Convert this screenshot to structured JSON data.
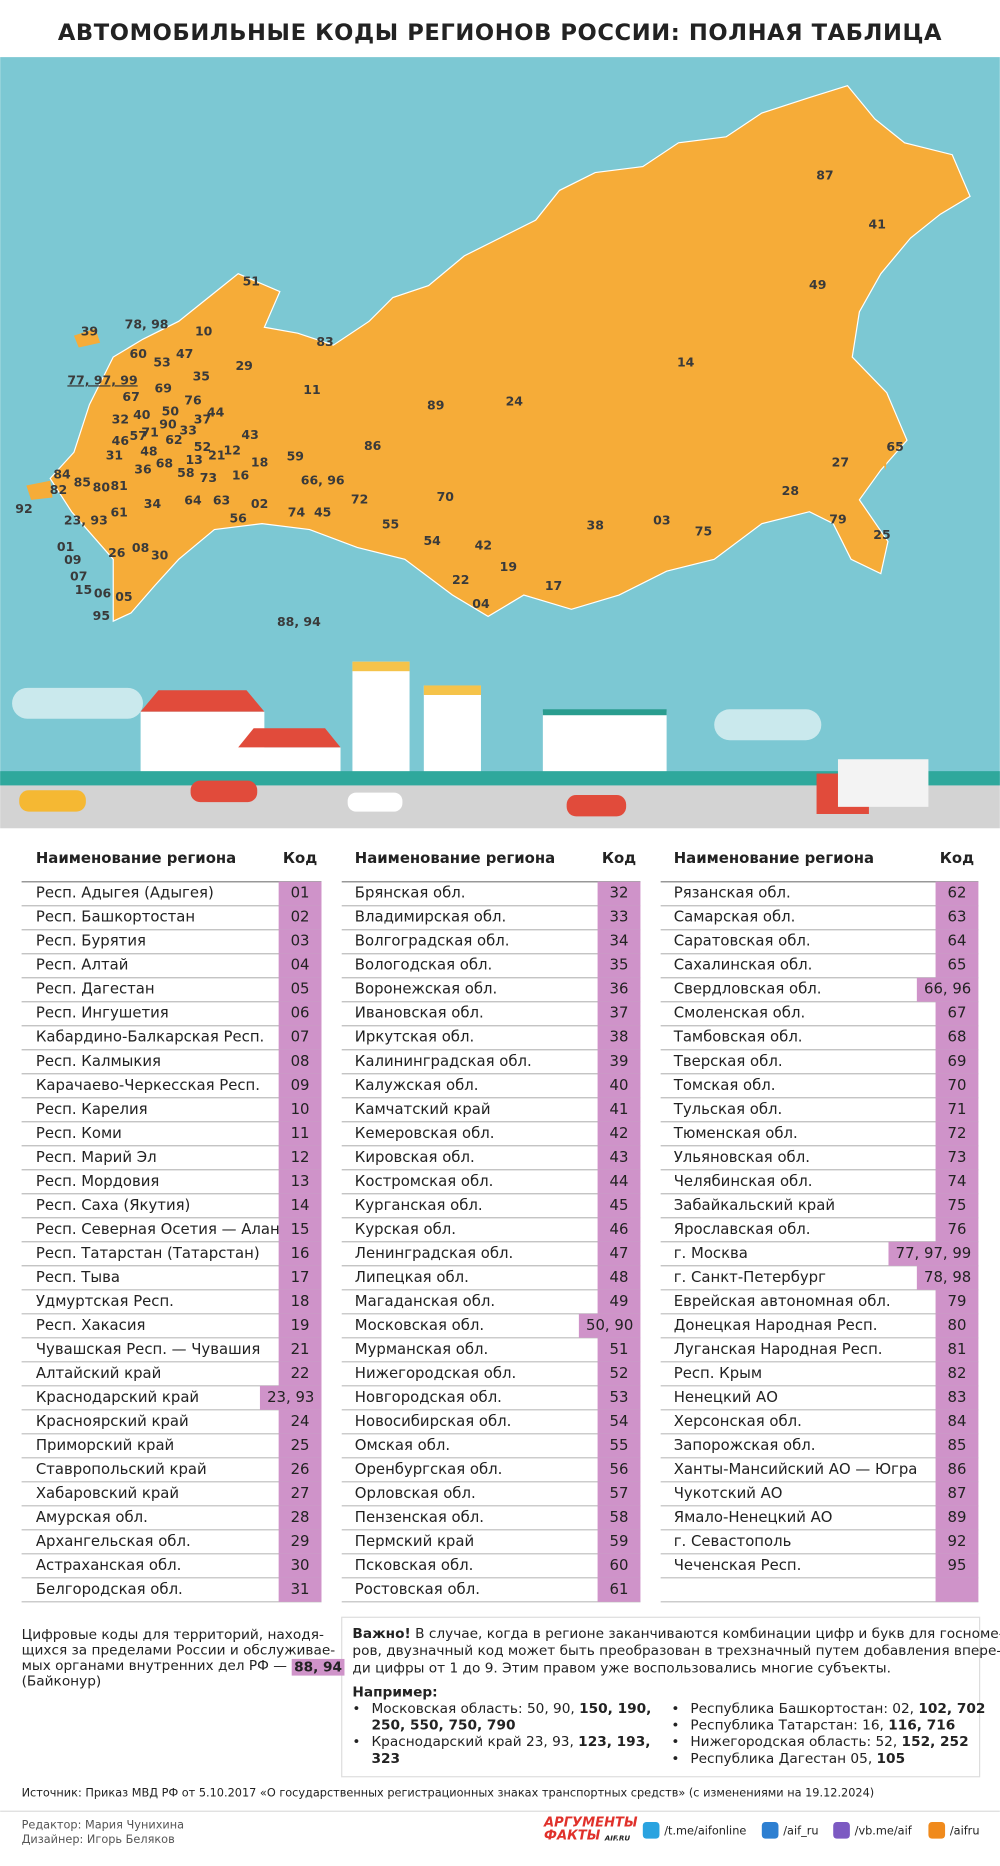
{
  "header": {
    "title": "АВТОМОБИЛЬНЫЕ КОДЫ РЕГИОНОВ РОССИИ: ПОЛНАЯ ТАБЛИЦА"
  },
  "map": {
    "labels": [
      "87",
      "41",
      "49",
      "14",
      "65",
      "27",
      "28",
      "79",
      "25",
      "03",
      "75",
      "38",
      "17",
      "04",
      "22",
      "19",
      "42",
      "54",
      "55",
      "70",
      "72",
      "86",
      "89",
      "24",
      "11",
      "83",
      "51",
      "10",
      "29",
      "39",
      "78, 98",
      "60",
      "53",
      "47",
      "35",
      "69",
      "77, 97, 99",
      "67",
      "76",
      "40",
      "50",
      "44",
      "37",
      "32",
      "90",
      "33",
      "71",
      "62",
      "46",
      "57",
      "43",
      "52",
      "12",
      "21",
      "48",
      "13",
      "31",
      "68",
      "36",
      "58",
      "59",
      "18",
      "73",
      "16",
      "84",
      "85",
      "80",
      "81",
      "82",
      "64",
      "63",
      "34",
      "66, 96",
      "02",
      "74",
      "45",
      "56",
      "61",
      "92",
      "23, 93",
      "01",
      "09",
      "26",
      "08",
      "30",
      "07",
      "15",
      "06",
      "05",
      "95",
      "88, 94"
    ]
  },
  "table": {
    "headers": [
      "Наименование региона",
      "Код"
    ],
    "columns": [
      [
        [
          "Респ. Адыгея (Адыгея)",
          "01"
        ],
        [
          "Респ. Башкортостан",
          "02"
        ],
        [
          "Респ. Бурятия",
          "03"
        ],
        [
          "Респ. Алтай",
          "04"
        ],
        [
          "Респ. Дагестан",
          "05"
        ],
        [
          "Респ. Ингушетия",
          "06"
        ],
        [
          "Кабардино-Балкарская Респ.",
          "07"
        ],
        [
          "Респ. Калмыкия",
          "08"
        ],
        [
          "Карачаево-Черкесская Респ.",
          "09"
        ],
        [
          "Респ. Карелия",
          "10"
        ],
        [
          "Респ. Коми",
          "11"
        ],
        [
          "Респ. Марий Эл",
          "12"
        ],
        [
          "Респ. Мордовия",
          "13"
        ],
        [
          "Респ. Саха (Якутия)",
          "14"
        ],
        [
          "Респ. Северная Осетия — Алания",
          "15"
        ],
        [
          "Респ. Татарстан (Татарстан)",
          "16"
        ],
        [
          "Респ. Тыва",
          "17"
        ],
        [
          "Удмуртская Респ.",
          "18"
        ],
        [
          "Респ. Хакасия",
          "19"
        ],
        [
          "Чувашская Респ. — Чувашия",
          "21"
        ],
        [
          "Алтайский край",
          "22"
        ],
        [
          "Краснодарский край",
          "23, 93"
        ],
        [
          "Красноярский край",
          "24"
        ],
        [
          "Приморский край",
          "25"
        ],
        [
          "Ставропольский край",
          "26"
        ],
        [
          "Хабаровский край",
          "27"
        ],
        [
          "Амурская обл.",
          "28"
        ],
        [
          "Архангельская обл.",
          "29"
        ],
        [
          "Астраханская обл.",
          "30"
        ],
        [
          "Белгородская обл.",
          "31"
        ]
      ],
      [
        [
          "Брянская обл.",
          "32"
        ],
        [
          "Владимирская обл.",
          "33"
        ],
        [
          "Волгоградская обл.",
          "34"
        ],
        [
          "Вологодская обл.",
          "35"
        ],
        [
          "Воронежская обл.",
          "36"
        ],
        [
          "Ивановская обл.",
          "37"
        ],
        [
          "Иркутская обл.",
          "38"
        ],
        [
          "Калининградская обл.",
          "39"
        ],
        [
          "Калужская обл.",
          "40"
        ],
        [
          "Камчатский край",
          "41"
        ],
        [
          "Кемеровская обл.",
          "42"
        ],
        [
          "Кировская обл.",
          "43"
        ],
        [
          "Костромская обл.",
          "44"
        ],
        [
          "Курганская обл.",
          "45"
        ],
        [
          "Курская обл.",
          "46"
        ],
        [
          "Ленинградская обл.",
          "47"
        ],
        [
          "Липецкая обл.",
          "48"
        ],
        [
          "Магаданская обл.",
          "49"
        ],
        [
          "Московская обл.",
          "50, 90"
        ],
        [
          "Мурманская обл.",
          "51"
        ],
        [
          "Нижегородская обл.",
          "52"
        ],
        [
          "Новгородская обл.",
          "53"
        ],
        [
          "Новосибирская обл.",
          "54"
        ],
        [
          "Омская обл.",
          "55"
        ],
        [
          "Оренбургская обл.",
          "56"
        ],
        [
          "Орловская обл.",
          "57"
        ],
        [
          "Пензенская обл.",
          "58"
        ],
        [
          "Пермский край",
          "59"
        ],
        [
          "Псковская обл.",
          "60"
        ],
        [
          "Ростовская обл.",
          "61"
        ]
      ],
      [
        [
          "Рязанская обл.",
          "62"
        ],
        [
          "Самарская обл.",
          "63"
        ],
        [
          "Саратовская обл.",
          "64"
        ],
        [
          "Сахалинская обл.",
          "65"
        ],
        [
          "Свердловская обл.",
          "66, 96"
        ],
        [
          "Смоленская обл.",
          "67"
        ],
        [
          "Тамбовская обл.",
          "68"
        ],
        [
          "Тверская обл.",
          "69"
        ],
        [
          "Томская обл.",
          "70"
        ],
        [
          "Тульская обл.",
          "71"
        ],
        [
          "Тюменская обл.",
          "72"
        ],
        [
          "Ульяновская обл.",
          "73"
        ],
        [
          "Челябинская обл.",
          "74"
        ],
        [
          "Забайкальский край",
          "75"
        ],
        [
          "Ярославская обл.",
          "76"
        ],
        [
          "г. Москва",
          "77, 97, 99"
        ],
        [
          "г. Санкт-Петербург",
          "78, 98"
        ],
        [
          "Еврейская автономная обл.",
          "79"
        ],
        [
          "Донецкая Народная Респ.",
          "80"
        ],
        [
          "Луганская Народная Респ.",
          "81"
        ],
        [
          "Респ. Крым",
          "82"
        ],
        [
          "Ненецкий АО",
          "83"
        ],
        [
          "Херсонская обл.",
          "84"
        ],
        [
          "Запорожская обл.",
          "85"
        ],
        [
          "Ханты-Мансийский АО — Югра",
          "86"
        ],
        [
          "Чукотский АО",
          "87"
        ],
        [
          "Ямало-Ненецкий АО",
          "89"
        ],
        [
          "г. Севастополь",
          "92"
        ],
        [
          "Чеченская Респ.",
          "95"
        ]
      ]
    ]
  },
  "notes": {
    "left": {
      "lines": [
        "Цифровые коды для территорий, находя-",
        "щихся за пределами России и обслуживае-",
        "мых органами внутренних дел РФ —"
      ],
      "code": "88, 94",
      "tail": "(Байконур)"
    },
    "important": {
      "lead": "Важно!",
      "lines": [
        "В случае, когда в регионе заканчиваются комбинации цифр и букв для госноме-",
        "ров, двузначный код может быть преобразован в трехзначный путем добавления впере-",
        "ди цифры от 1 до 9. Этим правом уже воспользовались многие субъекты."
      ]
    },
    "examples_title": "Например:",
    "examples": [
      [
        [
          {
            "plain": "Московская область: 50, 90, ",
            "bold": "150, 190,"
          },
          {
            "bold": "250, 550, 750, 790"
          }
        ],
        [
          {
            "plain": "Краснодарский край 23, 93, ",
            "bold": "123, 193,"
          },
          {
            "bold": "323"
          }
        ]
      ],
      [
        [
          {
            "plain": "Республика Башкортостан: 02, ",
            "bold": "102, 702"
          }
        ],
        [
          {
            "plain": "Республика Татарстан: 16, ",
            "bold": "116, 716"
          }
        ],
        [
          {
            "plain": "Нижегородская область: 52, ",
            "bold": "152, 252"
          }
        ],
        [
          {
            "plain": "Республика Дагестан 05, ",
            "bold": "105"
          }
        ]
      ]
    ]
  },
  "source": "Источник: Приказ МВД РФ от 5.10.2017 «О государственных регистрационных знаках транспортных средств» (с изменениями на 19.12.2024)",
  "footer": {
    "editor": "Редактор: Мария Чунихина",
    "designer": "Дизайнер: Игорь Беляков",
    "logo": [
      "АРГУМЕНТЫ",
      "ФАКТЫ",
      "AIF.RU"
    ],
    "links": [
      "/t.me/aifonline",
      "/aif_ru",
      "/vb.me/aif",
      "/aifru"
    ]
  }
}
